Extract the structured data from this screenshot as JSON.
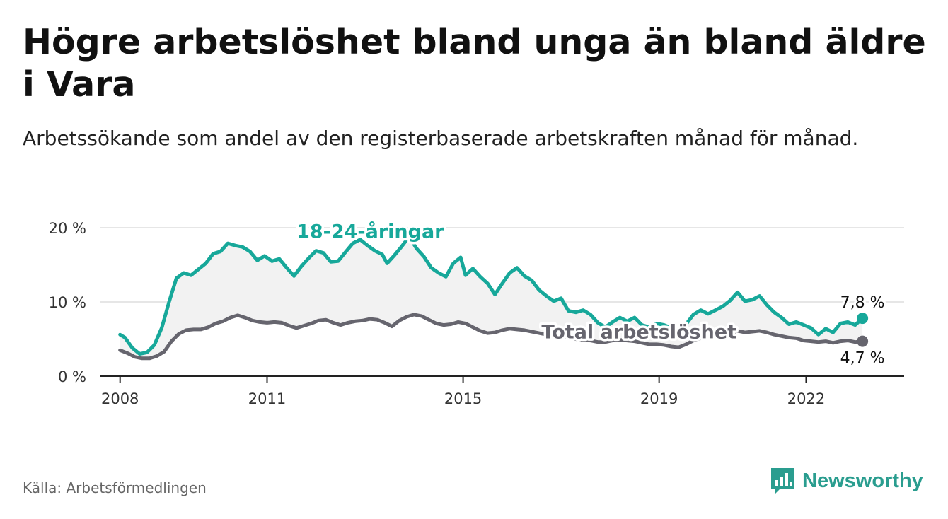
{
  "header": {
    "title": "Högre arbetslöshet bland unga än bland äldre i Vara",
    "subtitle": "Arbetssökande som andel av den registerbaserade arbetskraften månad för månad."
  },
  "footer": {
    "source": "Källa: Arbetsförmedlingen",
    "brand": "Newsworthy"
  },
  "colors": {
    "youth": "#17a89a",
    "total": "#66656e",
    "fill": "#f2f2f2",
    "grid": "#dddddd",
    "brand": "#2a9d8f"
  },
  "chart_data": {
    "type": "line",
    "title": "Högre arbetslöshet bland unga än bland äldre i Vara",
    "xlabel": "",
    "ylabel": "",
    "xlim": [
      2007.6,
      2024.0
    ],
    "ylim": [
      0,
      20
    ],
    "y_ticks": [
      {
        "value": 0,
        "label": "0 %"
      },
      {
        "value": 10,
        "label": "10 %"
      },
      {
        "value": 20,
        "label": "20 %"
      }
    ],
    "x_ticks": [
      {
        "value": 2008.0,
        "label": "2008"
      },
      {
        "value": 2011.0,
        "label": "2011"
      },
      {
        "value": 2015.0,
        "label": "2015"
      },
      {
        "value": 2019.0,
        "label": "2019"
      },
      {
        "value": 2022.0,
        "label": "2022"
      }
    ],
    "grid": true,
    "series": [
      {
        "name": "18-24-åringar",
        "label": "18-24-åringar",
        "end_label": "7,8 %",
        "points": [
          [
            2008.0,
            5.6
          ],
          [
            2008.1,
            5.2
          ],
          [
            2008.25,
            3.8
          ],
          [
            2008.4,
            3.0
          ],
          [
            2008.55,
            3.2
          ],
          [
            2008.7,
            4.2
          ],
          [
            2008.85,
            6.5
          ],
          [
            2009.0,
            10.0
          ],
          [
            2009.15,
            13.2
          ],
          [
            2009.3,
            13.9
          ],
          [
            2009.45,
            13.6
          ],
          [
            2009.6,
            14.4
          ],
          [
            2009.75,
            15.2
          ],
          [
            2009.9,
            16.5
          ],
          [
            2010.05,
            16.8
          ],
          [
            2010.2,
            17.9
          ],
          [
            2010.35,
            17.6
          ],
          [
            2010.5,
            17.4
          ],
          [
            2010.65,
            16.8
          ],
          [
            2010.8,
            15.6
          ],
          [
            2010.95,
            16.2
          ],
          [
            2011.1,
            15.5
          ],
          [
            2011.25,
            15.8
          ],
          [
            2011.4,
            14.6
          ],
          [
            2011.55,
            13.5
          ],
          [
            2011.7,
            14.8
          ],
          [
            2011.85,
            15.9
          ],
          [
            2012.0,
            16.9
          ],
          [
            2012.15,
            16.6
          ],
          [
            2012.3,
            15.4
          ],
          [
            2012.45,
            15.5
          ],
          [
            2012.6,
            16.7
          ],
          [
            2012.75,
            17.9
          ],
          [
            2012.9,
            18.4
          ],
          [
            2013.05,
            17.6
          ],
          [
            2013.2,
            16.9
          ],
          [
            2013.35,
            16.4
          ],
          [
            2013.45,
            15.2
          ],
          [
            2013.6,
            16.3
          ],
          [
            2013.75,
            17.5
          ],
          [
            2013.9,
            18.8
          ],
          [
            2014.05,
            17.2
          ],
          [
            2014.2,
            16.1
          ],
          [
            2014.35,
            14.6
          ],
          [
            2014.5,
            13.9
          ],
          [
            2014.65,
            13.4
          ],
          [
            2014.8,
            15.2
          ],
          [
            2014.95,
            16.0
          ],
          [
            2015.05,
            13.6
          ],
          [
            2015.2,
            14.5
          ],
          [
            2015.35,
            13.4
          ],
          [
            2015.5,
            12.5
          ],
          [
            2015.65,
            11.0
          ],
          [
            2015.8,
            12.5
          ],
          [
            2015.95,
            13.9
          ],
          [
            2016.1,
            14.6
          ],
          [
            2016.25,
            13.5
          ],
          [
            2016.4,
            12.9
          ],
          [
            2016.55,
            11.6
          ],
          [
            2016.7,
            10.8
          ],
          [
            2016.85,
            10.1
          ],
          [
            2017.0,
            10.5
          ],
          [
            2017.15,
            8.8
          ],
          [
            2017.3,
            8.6
          ],
          [
            2017.45,
            8.9
          ],
          [
            2017.6,
            8.3
          ],
          [
            2017.75,
            7.2
          ],
          [
            2017.9,
            6.6
          ],
          [
            2018.05,
            7.3
          ],
          [
            2018.2,
            7.9
          ],
          [
            2018.35,
            7.4
          ],
          [
            2018.5,
            7.9
          ],
          [
            2018.65,
            6.9
          ],
          [
            2018.8,
            6.6
          ],
          [
            2018.95,
            7.1
          ],
          [
            2019.1,
            6.9
          ],
          [
            2019.25,
            6.5
          ],
          [
            2019.4,
            6.3
          ],
          [
            2019.55,
            7.0
          ],
          [
            2019.7,
            8.3
          ],
          [
            2019.85,
            8.9
          ],
          [
            2020.0,
            8.4
          ],
          [
            2020.15,
            8.9
          ],
          [
            2020.3,
            9.4
          ],
          [
            2020.45,
            10.2
          ],
          [
            2020.6,
            11.3
          ],
          [
            2020.75,
            10.1
          ],
          [
            2020.9,
            10.3
          ],
          [
            2021.05,
            10.8
          ],
          [
            2021.2,
            9.6
          ],
          [
            2021.35,
            8.6
          ],
          [
            2021.5,
            7.9
          ],
          [
            2021.65,
            7.0
          ],
          [
            2021.8,
            7.3
          ],
          [
            2021.95,
            6.9
          ],
          [
            2022.1,
            6.5
          ],
          [
            2022.25,
            5.6
          ],
          [
            2022.4,
            6.4
          ],
          [
            2022.55,
            5.9
          ],
          [
            2022.7,
            7.1
          ],
          [
            2022.85,
            7.3
          ],
          [
            2023.0,
            6.9
          ],
          [
            2023.15,
            7.8
          ]
        ]
      },
      {
        "name": "Total arbetslöshet",
        "label": "Total arbetslöshet",
        "end_label": "4,7 %",
        "points": [
          [
            2008.0,
            3.5
          ],
          [
            2008.15,
            3.1
          ],
          [
            2008.3,
            2.6
          ],
          [
            2008.45,
            2.4
          ],
          [
            2008.6,
            2.4
          ],
          [
            2008.75,
            2.7
          ],
          [
            2008.9,
            3.3
          ],
          [
            2009.05,
            4.7
          ],
          [
            2009.2,
            5.7
          ],
          [
            2009.35,
            6.2
          ],
          [
            2009.5,
            6.3
          ],
          [
            2009.65,
            6.3
          ],
          [
            2009.8,
            6.6
          ],
          [
            2009.95,
            7.1
          ],
          [
            2010.1,
            7.4
          ],
          [
            2010.25,
            7.9
          ],
          [
            2010.4,
            8.2
          ],
          [
            2010.55,
            7.9
          ],
          [
            2010.7,
            7.5
          ],
          [
            2010.85,
            7.3
          ],
          [
            2011.0,
            7.2
          ],
          [
            2011.15,
            7.3
          ],
          [
            2011.3,
            7.2
          ],
          [
            2011.45,
            6.8
          ],
          [
            2011.6,
            6.5
          ],
          [
            2011.75,
            6.8
          ],
          [
            2011.9,
            7.1
          ],
          [
            2012.05,
            7.5
          ],
          [
            2012.2,
            7.6
          ],
          [
            2012.35,
            7.2
          ],
          [
            2012.5,
            6.9
          ],
          [
            2012.65,
            7.2
          ],
          [
            2012.8,
            7.4
          ],
          [
            2012.95,
            7.5
          ],
          [
            2013.1,
            7.7
          ],
          [
            2013.25,
            7.6
          ],
          [
            2013.4,
            7.2
          ],
          [
            2013.55,
            6.7
          ],
          [
            2013.7,
            7.5
          ],
          [
            2013.85,
            8.0
          ],
          [
            2014.0,
            8.3
          ],
          [
            2014.15,
            8.1
          ],
          [
            2014.3,
            7.6
          ],
          [
            2014.45,
            7.1
          ],
          [
            2014.6,
            6.9
          ],
          [
            2014.75,
            7.0
          ],
          [
            2014.9,
            7.3
          ],
          [
            2015.05,
            7.1
          ],
          [
            2015.2,
            6.6
          ],
          [
            2015.35,
            6.1
          ],
          [
            2015.5,
            5.8
          ],
          [
            2015.65,
            5.9
          ],
          [
            2015.8,
            6.2
          ],
          [
            2015.95,
            6.4
          ],
          [
            2016.1,
            6.3
          ],
          [
            2016.25,
            6.2
          ],
          [
            2016.4,
            6.0
          ],
          [
            2016.55,
            5.8
          ],
          [
            2016.7,
            5.6
          ],
          [
            2016.85,
            5.5
          ],
          [
            2017.0,
            5.4
          ],
          [
            2017.15,
            5.2
          ],
          [
            2017.3,
            5.0
          ],
          [
            2017.45,
            4.9
          ],
          [
            2017.6,
            4.8
          ],
          [
            2017.75,
            4.6
          ],
          [
            2017.9,
            4.6
          ],
          [
            2018.05,
            4.8
          ],
          [
            2018.2,
            4.9
          ],
          [
            2018.35,
            4.8
          ],
          [
            2018.5,
            4.7
          ],
          [
            2018.65,
            4.5
          ],
          [
            2018.8,
            4.3
          ],
          [
            2018.95,
            4.3
          ],
          [
            2019.1,
            4.2
          ],
          [
            2019.25,
            4.0
          ],
          [
            2019.4,
            3.9
          ],
          [
            2019.55,
            4.3
          ],
          [
            2019.7,
            4.8
          ],
          [
            2019.85,
            5.1
          ],
          [
            2020.0,
            5.2
          ],
          [
            2020.15,
            5.2
          ],
          [
            2020.3,
            5.5
          ],
          [
            2020.45,
            5.8
          ],
          [
            2020.6,
            6.1
          ],
          [
            2020.75,
            5.9
          ],
          [
            2020.9,
            6.0
          ],
          [
            2021.05,
            6.1
          ],
          [
            2021.2,
            5.9
          ],
          [
            2021.35,
            5.6
          ],
          [
            2021.5,
            5.4
          ],
          [
            2021.65,
            5.2
          ],
          [
            2021.8,
            5.1
          ],
          [
            2021.95,
            4.8
          ],
          [
            2022.1,
            4.7
          ],
          [
            2022.25,
            4.6
          ],
          [
            2022.4,
            4.7
          ],
          [
            2022.55,
            4.5
          ],
          [
            2022.7,
            4.7
          ],
          [
            2022.85,
            4.8
          ],
          [
            2023.0,
            4.6
          ],
          [
            2023.15,
            4.7
          ]
        ]
      }
    ]
  }
}
